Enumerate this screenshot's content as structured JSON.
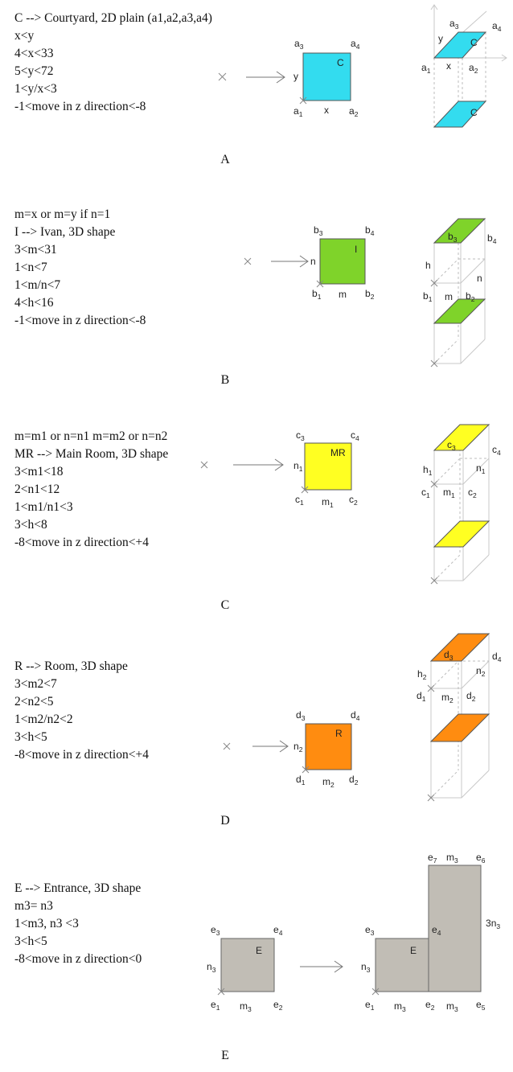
{
  "colors": {
    "courtyard": "#33dcef",
    "ivan": "#7fd32a",
    "main_room": "#ffff22",
    "room": "#ff8c10",
    "entrance": "#c1bdb5"
  },
  "panels": [
    {
      "id": "A",
      "label": "A",
      "rules": [
        "C --> Courtyard, 2D plain (a1,a2,a3,a4)",
        "x<y",
        "4<x<33",
        "5<y<72",
        "1<y/x<3",
        "-1<move in z direction<-8"
      ],
      "shape_letter": "C",
      "corners": [
        "a",
        "1",
        "a",
        "2",
        "a",
        "3",
        "a",
        "4"
      ],
      "width_label": "x",
      "height_label": "y"
    },
    {
      "id": "B",
      "label": "B",
      "rules": [
        "m=x or m=y if n=1",
        "I --> Ivan, 3D shape",
        "3<m<31",
        "1<n<7",
        "1<m/n<7",
        "4<h<16",
        "-1<move in z direction<-8"
      ],
      "shape_letter": "I",
      "corners": [
        "b",
        "1",
        "b",
        "2",
        "b",
        "3",
        "b",
        "4"
      ],
      "width_label": "m",
      "height_label": "n",
      "depth_label": "h"
    },
    {
      "id": "C",
      "label": "C",
      "rules": [
        "m=m1 or n=n1 m=m2 or n=n2",
        "MR --> Main Room, 3D shape",
        "3<m1<18",
        "2<n1<12",
        "1<m1/n1<3",
        "3<h<8",
        "-8<move in z direction<+4"
      ],
      "shape_letter": "MR",
      "corners": [
        "c",
        "1",
        "c",
        "2",
        "c",
        "3",
        "c",
        "4"
      ],
      "width_label": "m",
      "width_sub": "1",
      "height_label": "n",
      "height_sub": "1",
      "depth_label": "h",
      "depth_sub": "1"
    },
    {
      "id": "D",
      "label": "D",
      "rules": [
        "R --> Room, 3D shape",
        "3<m2<7",
        "2<n2<5",
        "1<m2/n2<2",
        "3<h<5",
        "-8<move in z direction<+4"
      ],
      "shape_letter": "R",
      "corners": [
        "d",
        "1",
        "d",
        "2",
        "d",
        "3",
        "d",
        "4"
      ],
      "width_label": "m",
      "width_sub": "2",
      "height_label": "n",
      "height_sub": "2",
      "depth_label": "h",
      "depth_sub": "2"
    },
    {
      "id": "E",
      "label": "E",
      "rules": [
        "E --> Entrance, 3D shape",
        "m3= n3",
        "1<m3, n3 <3",
        "3<h<5",
        "-8<move in z direction<0"
      ],
      "shape_letter": "E",
      "corner_letter": "e",
      "subs": [
        "1",
        "2",
        "3",
        "4",
        "5",
        "6",
        "7",
        "3"
      ],
      "side_label": "m",
      "height_label": "n",
      "tall_prefix": "3"
    }
  ]
}
